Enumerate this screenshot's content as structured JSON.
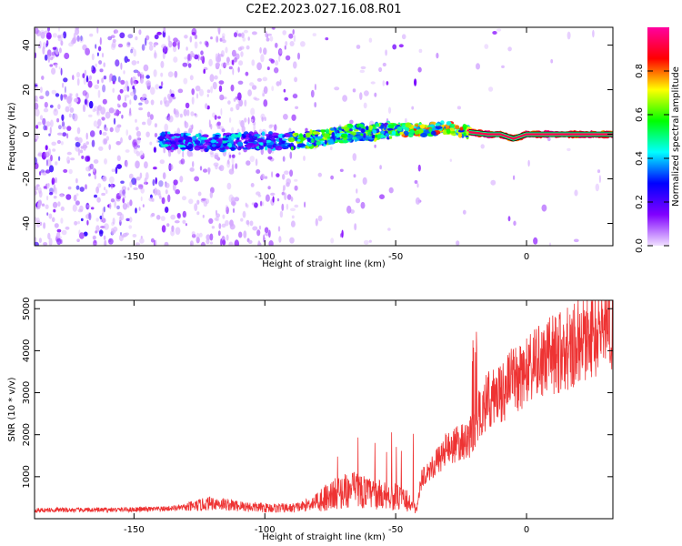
{
  "title": "C2E2.2023.027.16.08.R01",
  "chart_data": [
    {
      "type": "heatmap",
      "title": "",
      "xlabel": "Height of straight line (km)",
      "ylabel": "Frequency (Hz)",
      "xlim": [
        -188,
        33
      ],
      "ylim": [
        -50,
        48
      ],
      "xticks": [
        -150,
        -100,
        -50,
        0
      ],
      "yticks": [
        -40,
        -20,
        0,
        20,
        40
      ],
      "xtick_labels": [
        "-150",
        "-100",
        "-50",
        "0"
      ],
      "ytick_labels": [
        "-40",
        "-20",
        "0",
        "20",
        "40"
      ],
      "grid": false,
      "colorbar": {
        "label": "Normalized spectral amplitude",
        "range": [
          0,
          1
        ],
        "ticks": [
          0.0,
          0.2,
          0.4,
          0.6,
          0.8
        ],
        "tick_labels": [
          "0.0",
          "0.2",
          "0.4",
          "0.6",
          "0.8"
        ],
        "colormap": [
          "#f0e0ff",
          "#8000ff",
          "#0000ff",
          "#00ffff",
          "#00ff00",
          "#ffff00",
          "#ff0000",
          "#ff00a0"
        ]
      },
      "ridge": {
        "x": [
          -135,
          -120,
          -110,
          -100,
          -90,
          -80,
          -70,
          -60,
          -50,
          -40,
          -30,
          -22,
          -15,
          -10,
          -5,
          0,
          10,
          20,
          33
        ],
        "y": [
          -3,
          -4,
          -3,
          -3,
          -3,
          -2,
          0,
          1,
          2,
          2,
          3,
          1,
          0,
          0,
          -2,
          0,
          0,
          0,
          0
        ]
      }
    },
    {
      "type": "line",
      "title": "",
      "xlabel": "Height of straight line (km)",
      "ylabel": "SNR (10 * v/v)",
      "xlim": [
        -188,
        33
      ],
      "ylim": [
        0,
        5200
      ],
      "xticks": [
        -150,
        -100,
        -50,
        0
      ],
      "yticks": [
        1000,
        2000,
        3000,
        4000,
        5000
      ],
      "xtick_labels": [
        "-150",
        "-100",
        "-50",
        "0"
      ],
      "ytick_labels": [
        "1000",
        "2000",
        "3000",
        "4000",
        "5000"
      ],
      "grid": false,
      "color": "#ee3333",
      "series": [
        {
          "x": [
            -188,
            -180,
            -170,
            -160,
            -150,
            -140,
            -130,
            -125,
            -120,
            -110,
            -100,
            -90,
            -85,
            -80,
            -75,
            -70,
            -65,
            -60,
            -55,
            -50,
            -45,
            -42,
            -40,
            -35,
            -30,
            -25,
            -22,
            -20,
            -18,
            -15,
            -10,
            -5,
            0,
            10,
            20,
            33
          ],
          "values": [
            200,
            210,
            205,
            210,
            220,
            230,
            270,
            320,
            380,
            300,
            260,
            250,
            300,
            430,
            560,
            650,
            700,
            600,
            560,
            520,
            400,
            200,
            1000,
            1300,
            1700,
            1800,
            1900,
            2100,
            2500,
            2800,
            3000,
            3300,
            3500,
            3900,
            4200,
            4700
          ]
        }
      ]
    }
  ]
}
